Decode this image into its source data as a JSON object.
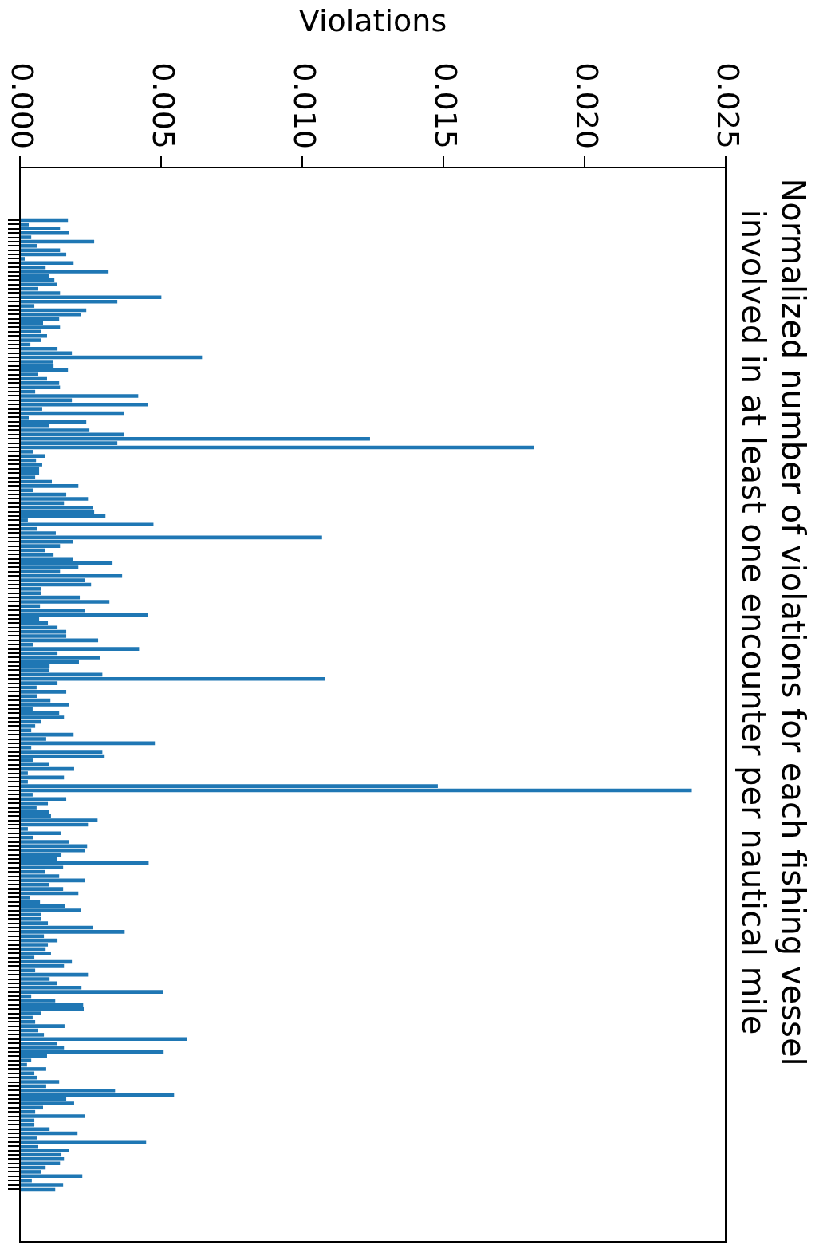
{
  "chart_data": {
    "type": "bar",
    "orientation": "horizontal",
    "title": "Normalized number of violations for each fishing vessel\ninvolved in at least one encounter per nautical mile",
    "xlabel": "Violations",
    "categories": [
      null,
      null,
      null,
      null,
      null,
      null,
      null,
      null,
      null,
      null,
      null,
      null,
      null,
      null,
      null,
      null,
      null,
      null,
      null,
      null,
      null,
      null,
      null,
      null,
      null,
      null,
      null,
      null,
      null,
      null,
      null,
      null,
      null,
      null,
      null,
      null,
      null,
      null,
      null,
      null,
      null,
      null,
      null,
      null,
      null,
      null,
      null,
      null,
      null,
      null,
      null,
      null,
      null,
      null,
      null,
      null,
      null,
      null,
      null,
      null,
      null,
      null,
      null,
      null,
      null,
      null,
      null,
      null,
      null,
      null,
      null,
      null,
      null,
      null,
      null,
      null,
      null,
      null,
      null,
      null,
      null,
      null,
      null,
      null,
      null,
      null,
      null,
      null,
      null,
      null,
      null,
      null,
      null,
      null,
      null,
      null,
      null,
      null,
      null,
      null,
      null,
      null,
      null,
      null,
      null,
      null,
      null,
      null,
      null,
      null,
      null,
      null,
      null,
      null,
      null,
      null,
      null,
      null,
      null,
      null,
      null,
      null,
      null,
      null,
      null,
      null,
      null,
      null,
      null,
      null,
      null,
      null,
      null,
      null,
      null,
      null,
      null,
      null,
      null,
      null,
      null,
      null,
      null,
      null,
      null,
      null,
      null,
      null,
      null,
      null,
      null,
      null,
      null,
      null,
      null,
      null,
      null,
      null,
      null,
      null,
      null,
      null,
      null,
      null,
      null,
      null,
      null,
      null,
      null,
      null,
      null,
      null,
      null,
      null,
      null,
      null,
      null,
      null,
      null,
      null,
      null,
      null,
      null,
      null,
      null,
      null,
      null,
      null,
      null,
      null,
      null,
      null,
      null,
      null,
      null,
      null,
      null,
      null,
      null,
      null,
      null,
      null,
      null,
      null,
      null,
      null,
      null,
      null,
      null,
      null,
      null,
      null,
      null,
      null,
      null,
      null,
      null,
      null,
      null,
      null,
      null,
      null,
      null,
      null,
      null,
      null,
      null
    ],
    "values": [
      0.0017,
      0.00031,
      0.00142,
      0.00173,
      0.0004,
      0.00263,
      0.00062,
      0.00142,
      0.00164,
      0.00017,
      0.0019,
      0.00091,
      0.00314,
      0.00102,
      0.00122,
      0.0013,
      0.00065,
      0.00142,
      0.00501,
      0.00345,
      0.00051,
      0.00235,
      0.00215,
      0.00139,
      0.00082,
      0.00142,
      0.00074,
      0.00096,
      0.00076,
      0.00037,
      0.00133,
      0.00184,
      0.00645,
      0.00116,
      0.00119,
      0.0017,
      0.00065,
      0.00096,
      0.00139,
      0.00142,
      0.00054,
      0.00419,
      0.00184,
      0.00453,
      0.00079,
      0.00368,
      0.00031,
      0.00235,
      0.00102,
      0.00246,
      0.00368,
      0.0124,
      0.00345,
      0.0182,
      0.00048,
      0.00088,
      0.00057,
      0.00079,
      0.00068,
      0.00068,
      0.00054,
      0.00113,
      0.00207,
      0.00048,
      0.00164,
      0.00241,
      0.00156,
      0.00258,
      0.00263,
      0.00303,
      0.00028,
      0.00473,
      0.00062,
      0.00127,
      0.0107,
      0.00187,
      0.00142,
      0.00088,
      0.00119,
      0.00187,
      0.00328,
      0.00207,
      0.00142,
      0.00362,
      0.00229,
      0.00252,
      0.00074,
      0.00074,
      0.00212,
      0.00317,
      0.00071,
      0.00229,
      0.00453,
      0.00068,
      0.00099,
      0.00133,
      0.00164,
      0.00164,
      0.00277,
      0.00048,
      0.00422,
      0.00133,
      0.00283,
      0.00209,
      0.00105,
      0.00102,
      0.00292,
      0.0108,
      0.00133,
      0.00059,
      0.00164,
      0.00062,
      0.00108,
      0.00175,
      0.00045,
      0.00139,
      0.00156,
      0.00074,
      0.00054,
      0.0004,
      0.0019,
      0.00093,
      0.00478,
      0.0004,
      0.00292,
      0.003,
      0.00048,
      0.00102,
      0.00192,
      0.00028,
      0.00156,
      0.00028,
      0.0148,
      0.0238,
      0.00045,
      0.00164,
      0.00099,
      0.00059,
      0.00102,
      0.0011,
      0.00275,
      0.00241,
      0.00028,
      0.00144,
      0.00048,
      0.00173,
      0.00238,
      0.00229,
      0.00147,
      0.0013,
      0.00456,
      0.00153,
      0.00088,
      0.00139,
      0.00229,
      0.00102,
      0.00153,
      0.00207,
      0.00034,
      0.00071,
      0.00161,
      0.00215,
      0.00074,
      0.00076,
      0.00099,
      0.00258,
      0.00371,
      0.00085,
      0.00133,
      0.00099,
      0.00091,
      0.0011,
      0.00051,
      0.00184,
      0.00156,
      0.00054,
      0.00241,
      0.00105,
      0.0013,
      0.00218,
      0.00507,
      0.0004,
      0.00125,
      0.00224,
      0.00226,
      0.00074,
      0.00045,
      0.00054,
      0.00158,
      0.00065,
      0.00085,
      0.00592,
      0.0013,
      0.00156,
      0.00509,
      0.00096,
      0.0004,
      0.00025,
      0.00093,
      0.00051,
      0.00062,
      0.00139,
      0.00093,
      0.00337,
      0.00546,
      0.00164,
      0.00192,
      0.00082,
      0.00054,
      0.00229,
      0.00051,
      0.00051,
      0.00105,
      0.00204,
      0.00062,
      0.00447,
      0.00065,
      0.00173,
      0.00147,
      0.00156,
      0.00142,
      0.00091,
      0.00076,
      0.00221,
      0.00042,
      0.00153,
      0.00125
    ],
    "color": "#1f77b4",
    "xlim": [
      0,
      0.025
    ],
    "xticks": [
      {
        "value": 0,
        "label": "0.000"
      },
      {
        "value": 0.005,
        "label": "0.005"
      },
      {
        "value": 0.01,
        "label": "0.010"
      },
      {
        "value": 0.015,
        "label": "0.015"
      },
      {
        "value": 0.02,
        "label": "0.020"
      },
      {
        "value": 0.025,
        "label": "0.025"
      }
    ],
    "grid": false,
    "legend": false
  }
}
